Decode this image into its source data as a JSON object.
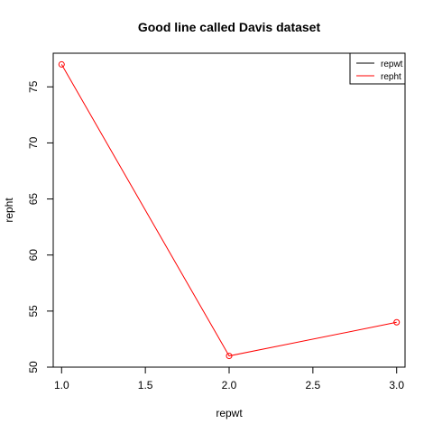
{
  "chart_data": {
    "type": "line",
    "title": "Good line called Davis dataset",
    "xlabel": "repwt",
    "ylabel": "repht",
    "xlim": [
      0.95,
      3.05
    ],
    "ylim": [
      50,
      78
    ],
    "x_ticks": [
      1.0,
      1.5,
      2.0,
      2.5,
      3.0
    ],
    "x_tick_labels": [
      "1.0",
      "1.5",
      "2.0",
      "2.5",
      "3.0"
    ],
    "y_ticks": [
      50,
      55,
      60,
      65,
      70,
      75
    ],
    "y_tick_labels": [
      "50",
      "55",
      "60",
      "65",
      "70",
      "75"
    ],
    "grid": false,
    "legend_position": "top-right",
    "legend": [
      {
        "label": "repwt",
        "color": "#000000"
      },
      {
        "label": "repht",
        "color": "#ff0000"
      }
    ],
    "series": [
      {
        "name": "repht",
        "color": "#ff0000",
        "marker": "open-circle",
        "x": [
          1,
          2,
          3
        ],
        "y": [
          77,
          51,
          54
        ]
      }
    ]
  }
}
